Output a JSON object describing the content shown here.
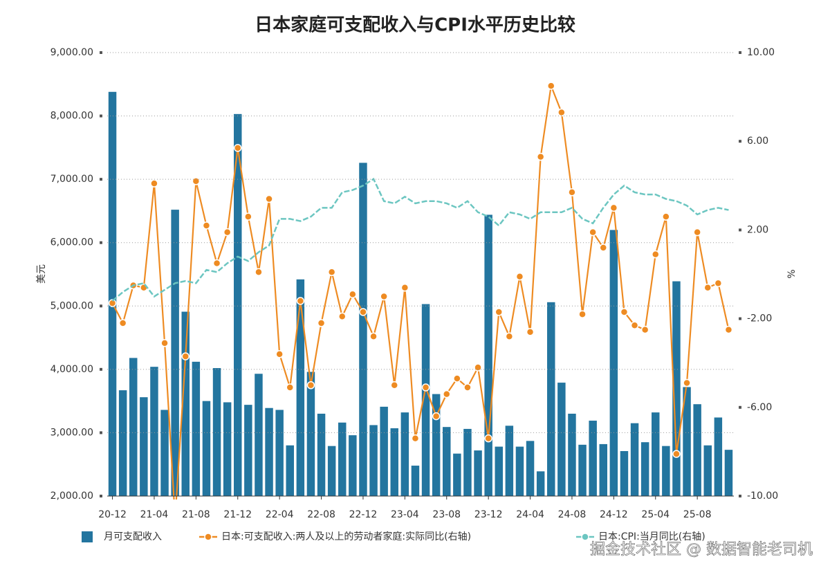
{
  "chart_data": {
    "type": "bar-line",
    "title": "日本家庭可支配收入与CPI水平历史比较",
    "ylabel": "美元",
    "y2label": "%",
    "watermark": "掘金技术社区 @ 数据智能老司机",
    "grid": true,
    "categories": [
      "20-12",
      null,
      null,
      null,
      "21-04",
      null,
      null,
      null,
      "21-08",
      null,
      null,
      null,
      "21-12",
      null,
      null,
      null,
      "22-04",
      null,
      null,
      null,
      "22-08",
      null,
      null,
      null,
      "22-12",
      null,
      null,
      null,
      "23-04",
      null,
      null,
      null,
      "23-08",
      null,
      null,
      null,
      "23-12",
      null,
      null,
      null,
      "24-04",
      null,
      null,
      null,
      "24-08",
      null,
      null,
      null,
      "24-12",
      null,
      null,
      null,
      "25-04",
      null,
      null,
      null,
      "25-08",
      null,
      null,
      null
    ],
    "ylim": [
      2000,
      9000
    ],
    "yticks": [
      {
        "value": 2000,
        "label": "2,000.00"
      },
      {
        "value": 3000,
        "label": "3,000.00"
      },
      {
        "value": 4000,
        "label": "4,000.00"
      },
      {
        "value": 5000,
        "label": "5,000.00"
      },
      {
        "value": 6000,
        "label": "6,000.00"
      },
      {
        "value": 7000,
        "label": "7,000.00"
      },
      {
        "value": 8000,
        "label": "8,000.00"
      },
      {
        "value": 9000,
        "label": "9,000.00"
      }
    ],
    "y2lim": [
      -10,
      10
    ],
    "y2ticks": [
      {
        "value": -10,
        "label": "-10.00"
      },
      {
        "value": -6,
        "label": "-6.00"
      },
      {
        "value": -2,
        "label": "-2.00"
      },
      {
        "value": 2,
        "label": "2.00"
      },
      {
        "value": 6,
        "label": "6.00"
      },
      {
        "value": 10,
        "label": "10.00"
      }
    ],
    "series": [
      {
        "name": "月可支配收入",
        "type": "bar",
        "color": "#23759f",
        "axis": "y",
        "values": [
          8380,
          3670,
          4180,
          3560,
          4040,
          3360,
          6520,
          4910,
          4120,
          3500,
          4020,
          3480,
          8030,
          3440,
          3930,
          3390,
          3360,
          2800,
          5420,
          3960,
          3300,
          2790,
          3160,
          2960,
          7260,
          3120,
          3410,
          3070,
          3320,
          2480,
          5030,
          3610,
          3090,
          2670,
          3060,
          2720,
          6440,
          2780,
          3110,
          2780,
          2870,
          2390,
          5060,
          3790,
          3300,
          2810,
          3190,
          2820,
          6200,
          2710,
          3150,
          2850,
          3320,
          2790,
          5390,
          3720,
          3450,
          2800,
          3240,
          2730
        ]
      },
      {
        "name": "日本:可支配收入:两人及以上的劳动者家庭:实际同比(右轴)",
        "type": "line",
        "markers": true,
        "color": "#ee8b22",
        "axis": "y2",
        "values": [
          -1.3,
          -2.2,
          -0.5,
          -0.6,
          4.1,
          -3.1,
          -11,
          -3.7,
          4.2,
          2.2,
          0.5,
          1.9,
          5.7,
          2.6,
          0.1,
          3.4,
          -3.6,
          -5.1,
          -1.2,
          -5.0,
          -2.2,
          0.1,
          -1.9,
          -0.9,
          -1.7,
          -2.8,
          -1.0,
          -5.0,
          -0.6,
          -7.4,
          -5.1,
          -6.4,
          -5.4,
          -4.7,
          -5.1,
          -4.2,
          -7.4,
          -1.7,
          -2.8,
          -0.1,
          -2.6,
          5.3,
          8.5,
          7.3,
          3.7,
          -1.8,
          1.9,
          1.2,
          3.0,
          -1.7,
          -2.3,
          -2.5,
          0.9,
          2.6,
          -8.1,
          -4.9,
          1.9,
          -0.6,
          -0.4,
          -2.5
        ]
      },
      {
        "name": "日本:CPI:当月同比(右轴)",
        "type": "line",
        "dashed": true,
        "color": "#6cc6c1",
        "axis": "y2",
        "values": [
          -1.2,
          -0.8,
          -0.5,
          -0.4,
          -1.0,
          -0.7,
          -0.4,
          -0.3,
          -0.4,
          0.2,
          0.1,
          0.5,
          0.8,
          0.6,
          1.0,
          1.3,
          2.5,
          2.5,
          2.4,
          2.6,
          3.0,
          3.0,
          3.7,
          3.8,
          4.0,
          4.3,
          3.3,
          3.2,
          3.5,
          3.2,
          3.3,
          3.3,
          3.2,
          3.0,
          3.3,
          2.8,
          2.6,
          2.2,
          2.8,
          2.7,
          2.5,
          2.8,
          2.8,
          2.8,
          3.0,
          2.5,
          2.3,
          3.0,
          3.6,
          4.0,
          3.7,
          3.6,
          3.6,
          3.4,
          3.3,
          3.1,
          2.7,
          2.9,
          3.0,
          2.9
        ]
      }
    ]
  }
}
